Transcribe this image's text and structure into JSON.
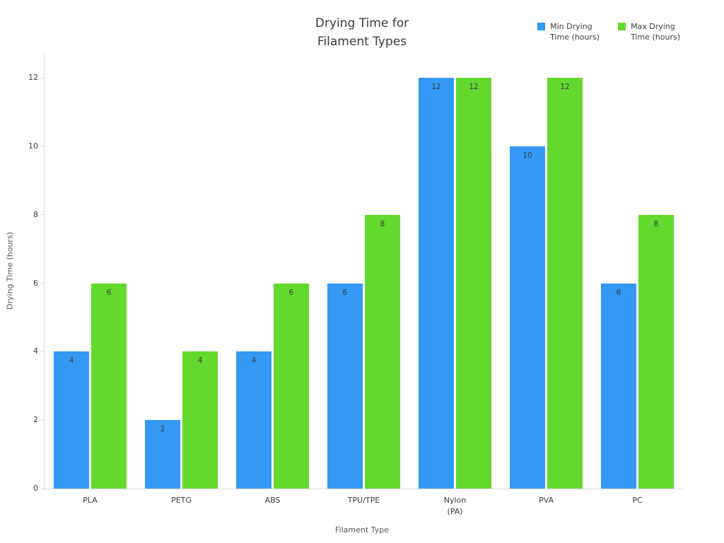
{
  "title": "Drying Time for\nFilament Types",
  "legend": [
    {
      "label": "Min Drying\nTime (hours)",
      "color": "#3399f4"
    },
    {
      "label": "Max Drying\nTime (hours)",
      "color": "#63d92e"
    }
  ],
  "chart_data": {
    "type": "bar",
    "title": "Drying Time for Filament Types",
    "xlabel": "Filament Type",
    "ylabel": "Drying Time (hours)",
    "categories": [
      "PLA",
      "PETG",
      "ABS",
      "TPU/TPE",
      "Nylon\n(PA)",
      "PVA",
      "PC"
    ],
    "series": [
      {
        "name": "Min Drying Time (hours)",
        "color": "#3399f4",
        "values": [
          4,
          2,
          4,
          6,
          12,
          10,
          6
        ]
      },
      {
        "name": "Max Drying Time (hours)",
        "color": "#63d92e",
        "values": [
          6,
          4,
          6,
          8,
          12,
          12,
          8
        ]
      }
    ],
    "yticks": [
      0,
      2,
      4,
      6,
      8,
      10,
      12
    ],
    "ylim": [
      0,
      12.7
    ],
    "grid": false,
    "legend_position": "top-right",
    "bar_labels": true
  }
}
